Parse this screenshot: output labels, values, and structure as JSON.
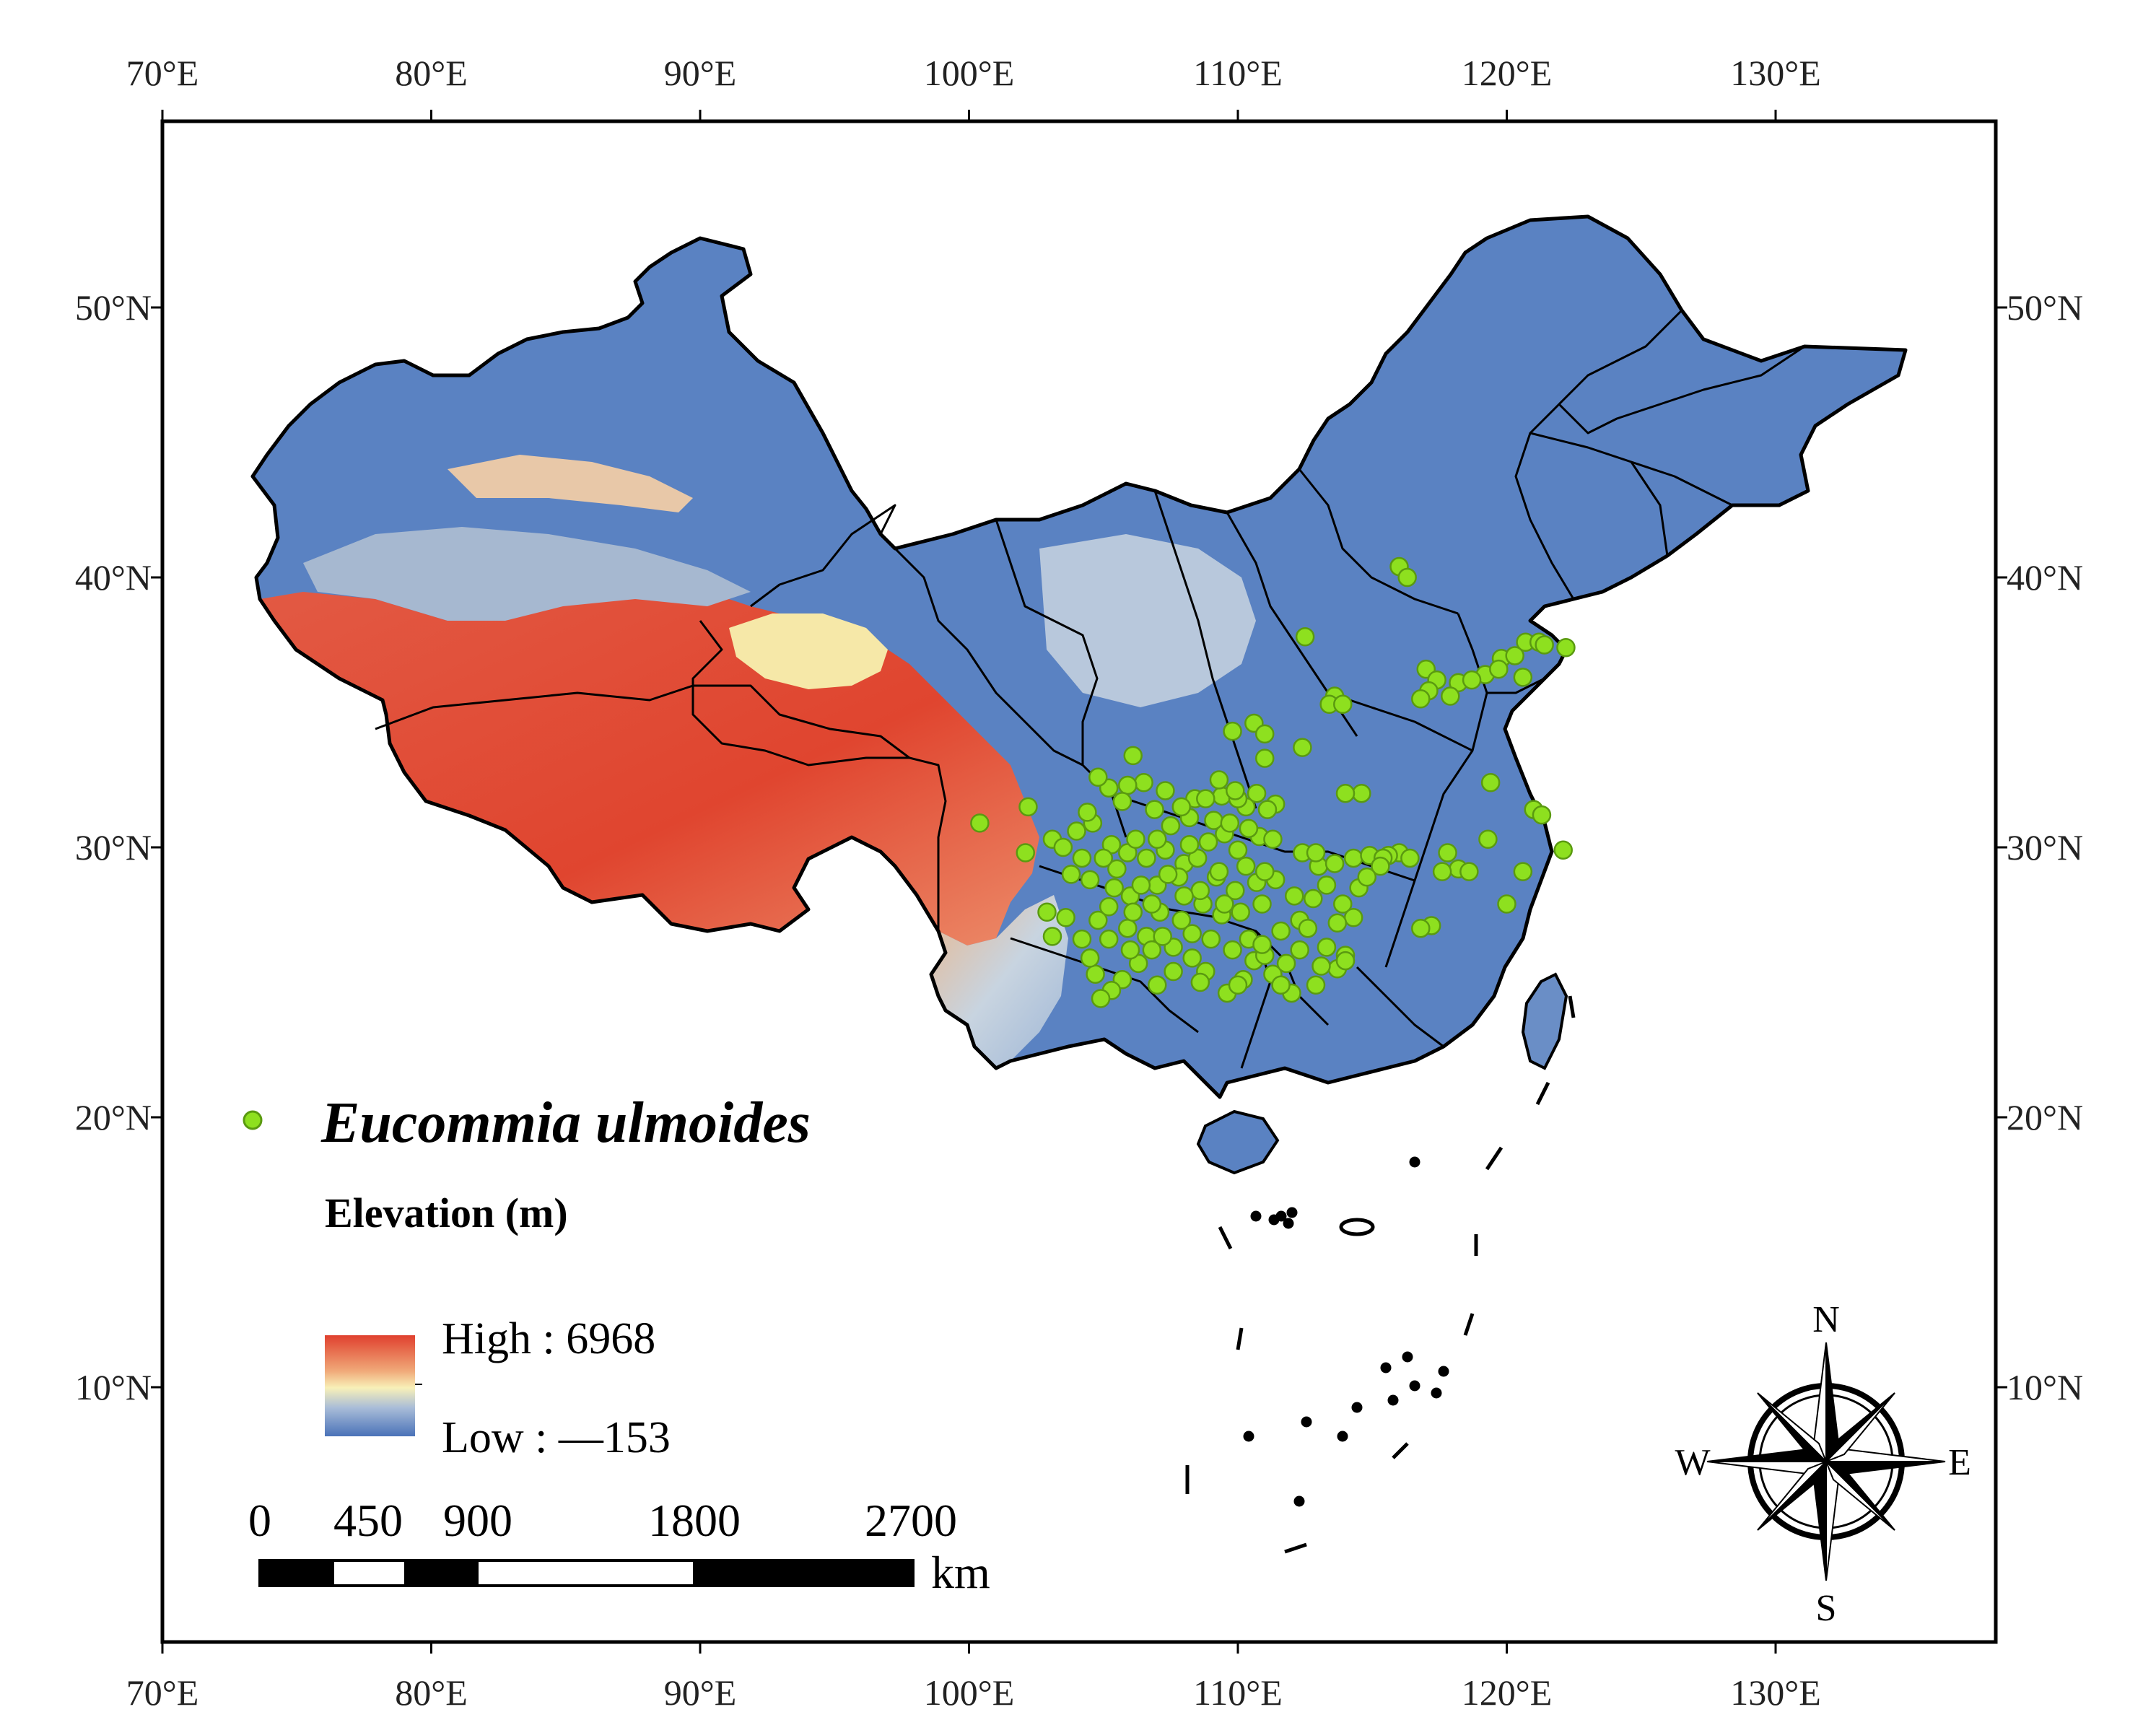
{
  "map": {
    "lon_ticks": [
      "70°E",
      "80°E",
      "90°E",
      "100°E",
      "110°E",
      "120°E",
      "130°E"
    ],
    "lat_ticks": [
      "50°N",
      "40°N",
      "30°N",
      "20°N",
      "10°N"
    ],
    "colors": {
      "high": "#e0402e",
      "mid": "#f8f0b8",
      "low": "#4a72b8",
      "point": "#8ee01f",
      "point_stroke": "#5a9a10",
      "boundary": "#000000"
    }
  },
  "legend": {
    "species": "Eucommia ulmoides",
    "elevation_title": "Elevation (m)",
    "high": "High : 6968",
    "low": "Low : —153"
  },
  "scale_bar": {
    "labels": [
      "0",
      "450",
      "900",
      "1800",
      "2700"
    ],
    "unit": "km"
  },
  "compass": {
    "n": "N",
    "s": "S",
    "e": "E",
    "w": "W"
  },
  "occurrences": [
    [
      116.0,
      40.4
    ],
    [
      116.3,
      40.0
    ],
    [
      112.5,
      37.8
    ],
    [
      120.7,
      37.6
    ],
    [
      121.2,
      37.6
    ],
    [
      121.4,
      37.5
    ],
    [
      122.2,
      37.4
    ],
    [
      119.8,
      37.0
    ],
    [
      117.0,
      36.6
    ],
    [
      117.4,
      36.2
    ],
    [
      118.2,
      36.1
    ],
    [
      119.2,
      36.4
    ],
    [
      120.6,
      36.3
    ],
    [
      117.1,
      35.8
    ],
    [
      116.8,
      35.5
    ],
    [
      117.9,
      35.6
    ],
    [
      113.6,
      35.6
    ],
    [
      113.4,
      35.3
    ],
    [
      113.9,
      35.3
    ],
    [
      110.6,
      34.6
    ],
    [
      109.8,
      34.3
    ],
    [
      111.0,
      34.2
    ],
    [
      112.4,
      33.7
    ],
    [
      111.0,
      33.3
    ],
    [
      119.4,
      32.4
    ],
    [
      121.0,
      31.4
    ],
    [
      121.3,
      31.2
    ],
    [
      122.1,
      29.9
    ],
    [
      119.3,
      30.3
    ],
    [
      120.6,
      29.1
    ],
    [
      118.2,
      29.2
    ],
    [
      120.0,
      27.9
    ],
    [
      117.2,
      27.1
    ],
    [
      116.8,
      27.0
    ],
    [
      117.6,
      29.1
    ],
    [
      116.0,
      29.8
    ],
    [
      115.6,
      29.7
    ],
    [
      114.6,
      32.0
    ],
    [
      114.0,
      32.0
    ],
    [
      111.4,
      31.6
    ],
    [
      110.3,
      31.5
    ],
    [
      109.4,
      31.9
    ],
    [
      108.4,
      31.8
    ],
    [
      107.3,
      32.1
    ],
    [
      106.5,
      32.4
    ],
    [
      105.9,
      32.3
    ],
    [
      105.2,
      32.2
    ],
    [
      104.8,
      32.6
    ],
    [
      106.1,
      33.4
    ],
    [
      109.3,
      32.5
    ],
    [
      110.0,
      31.8
    ],
    [
      111.1,
      31.4
    ],
    [
      100.4,
      30.9
    ],
    [
      102.2,
      31.5
    ],
    [
      102.1,
      29.8
    ],
    [
      103.1,
      30.3
    ],
    [
      103.5,
      30.0
    ],
    [
      104.0,
      30.6
    ],
    [
      104.6,
      30.9
    ],
    [
      105.3,
      30.1
    ],
    [
      105.9,
      29.8
    ],
    [
      106.6,
      29.6
    ],
    [
      107.3,
      29.9
    ],
    [
      108.0,
      29.4
    ],
    [
      108.9,
      30.2
    ],
    [
      109.5,
      30.5
    ],
    [
      110.0,
      29.9
    ],
    [
      110.8,
      30.4
    ],
    [
      111.3,
      30.3
    ],
    [
      112.4,
      29.8
    ],
    [
      113.0,
      29.3
    ],
    [
      113.6,
      29.4
    ],
    [
      114.3,
      29.6
    ],
    [
      114.9,
      29.7
    ],
    [
      115.4,
      29.6
    ],
    [
      113.3,
      28.6
    ],
    [
      112.8,
      28.1
    ],
    [
      113.9,
      27.9
    ],
    [
      114.3,
      27.4
    ],
    [
      112.3,
      27.3
    ],
    [
      111.6,
      26.9
    ],
    [
      110.9,
      27.9
    ],
    [
      110.1,
      27.6
    ],
    [
      109.4,
      27.5
    ],
    [
      108.7,
      27.9
    ],
    [
      107.9,
      27.3
    ],
    [
      107.1,
      27.6
    ],
    [
      106.6,
      26.7
    ],
    [
      105.9,
      27.0
    ],
    [
      105.2,
      26.6
    ],
    [
      104.8,
      27.3
    ],
    [
      104.2,
      26.6
    ],
    [
      103.6,
      27.4
    ],
    [
      103.1,
      26.7
    ],
    [
      102.9,
      27.6
    ],
    [
      104.5,
      28.8
    ],
    [
      105.4,
      28.5
    ],
    [
      106.0,
      28.2
    ],
    [
      107.0,
      28.6
    ],
    [
      107.8,
      28.9
    ],
    [
      108.6,
      28.4
    ],
    [
      109.2,
      28.9
    ],
    [
      109.9,
      28.4
    ],
    [
      110.7,
      28.7
    ],
    [
      111.4,
      28.8
    ],
    [
      112.1,
      28.2
    ],
    [
      112.6,
      27.0
    ],
    [
      113.3,
      26.3
    ],
    [
      114.0,
      26.0
    ],
    [
      113.7,
      25.5
    ],
    [
      112.9,
      24.9
    ],
    [
      112.0,
      24.6
    ],
    [
      111.3,
      25.3
    ],
    [
      110.6,
      25.8
    ],
    [
      110.2,
      25.1
    ],
    [
      109.6,
      24.6
    ],
    [
      108.8,
      25.4
    ],
    [
      108.3,
      25.9
    ],
    [
      107.6,
      25.4
    ],
    [
      107.0,
      24.9
    ],
    [
      106.3,
      25.7
    ],
    [
      105.7,
      25.1
    ],
    [
      105.3,
      24.7
    ],
    [
      104.7,
      25.3
    ],
    [
      104.9,
      24.4
    ],
    [
      106.8,
      26.2
    ],
    [
      107.6,
      26.3
    ],
    [
      108.3,
      26.8
    ],
    [
      109.0,
      26.6
    ],
    [
      109.8,
      26.2
    ],
    [
      110.4,
      26.6
    ],
    [
      111.0,
      26.0
    ],
    [
      111.8,
      25.7
    ],
    [
      112.3,
      26.2
    ],
    [
      105.5,
      29.2
    ],
    [
      106.2,
      30.3
    ],
    [
      107.5,
      30.8
    ],
    [
      108.2,
      31.1
    ],
    [
      109.1,
      31.0
    ],
    [
      109.7,
      30.9
    ],
    [
      110.4,
      30.7
    ],
    [
      104.2,
      29.6
    ],
    [
      103.8,
      29.0
    ],
    [
      105.0,
      29.6
    ],
    [
      106.4,
      28.6
    ],
    [
      107.4,
      29.0
    ],
    [
      108.5,
      29.6
    ],
    [
      109.3,
      29.1
    ],
    [
      110.3,
      29.3
    ],
    [
      111.0,
      29.1
    ],
    [
      104.4,
      31.3
    ],
    [
      105.7,
      31.7
    ],
    [
      106.9,
      31.4
    ],
    [
      107.9,
      31.5
    ],
    [
      108.8,
      31.8
    ],
    [
      109.9,
      32.1
    ],
    [
      110.7,
      32.0
    ],
    [
      112.9,
      29.8
    ],
    [
      114.5,
      28.5
    ],
    [
      113.7,
      27.2
    ],
    [
      105.2,
      27.8
    ],
    [
      106.1,
      27.6
    ],
    [
      106.8,
      27.9
    ],
    [
      108.0,
      28.2
    ],
    [
      109.5,
      27.9
    ],
    [
      110.9,
      26.4
    ],
    [
      104.5,
      25.9
    ],
    [
      106.0,
      26.2
    ],
    [
      107.2,
      26.7
    ],
    [
      108.6,
      25.0
    ],
    [
      110.0,
      24.9
    ],
    [
      111.6,
      24.9
    ],
    [
      113.1,
      25.6
    ],
    [
      114.0,
      25.8
    ],
    [
      115.3,
      29.3
    ],
    [
      114.8,
      28.9
    ],
    [
      116.4,
      29.6
    ],
    [
      118.6,
      29.1
    ],
    [
      117.8,
      29.8
    ],
    [
      118.7,
      36.2
    ],
    [
      119.7,
      36.6
    ],
    [
      120.3,
      37.1
    ],
    [
      108.2,
      30.1
    ],
    [
      107.0,
      30.3
    ]
  ]
}
